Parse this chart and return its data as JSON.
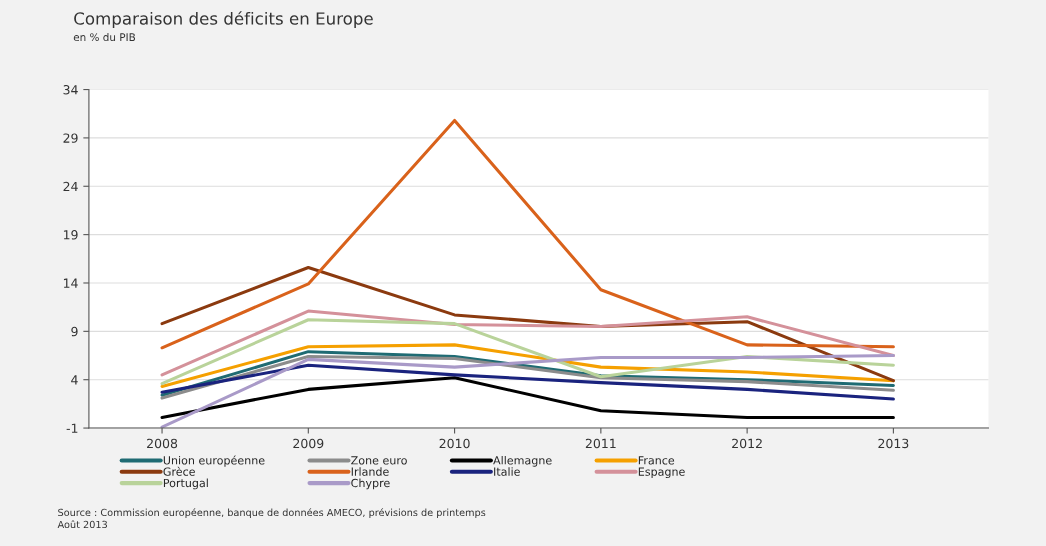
{
  "chart_data": {
    "type": "line",
    "title": "Comparaison des déficits en Europe",
    "subtitle": "en % du PIB",
    "categories": [
      "2008",
      "2009",
      "2010",
      "2011",
      "2012",
      "2013"
    ],
    "series": [
      {
        "name": "Union européenne",
        "color": "#1f6b73",
        "values": [
          2.4,
          6.9,
          6.4,
          4.4,
          4.0,
          3.4
        ]
      },
      {
        "name": "Zone euro",
        "color": "#8c8c8c",
        "values": [
          2.1,
          6.4,
          6.2,
          4.2,
          3.8,
          2.9
        ]
      },
      {
        "name": "Allemagne",
        "color": "#000000",
        "values": [
          0.1,
          3.0,
          4.2,
          0.8,
          0.1,
          0.1
        ]
      },
      {
        "name": "France",
        "color": "#f5a000",
        "values": [
          3.3,
          7.4,
          7.6,
          5.3,
          4.8,
          3.9
        ]
      },
      {
        "name": "Grèce",
        "color": "#8b3a0f",
        "values": [
          9.8,
          15.6,
          10.7,
          9.5,
          10.0,
          3.9
        ]
      },
      {
        "name": "Irlande",
        "color": "#d9621b",
        "values": [
          7.3,
          13.9,
          30.8,
          13.3,
          7.6,
          7.4
        ]
      },
      {
        "name": "Italie",
        "color": "#1a237e",
        "values": [
          2.7,
          5.5,
          4.5,
          3.7,
          3.0,
          2.0
        ]
      },
      {
        "name": "Espagne",
        "color": "#d4919a",
        "values": [
          4.5,
          11.1,
          9.7,
          9.5,
          10.5,
          6.5
        ]
      },
      {
        "name": "Portugal",
        "color": "#b9d39a",
        "values": [
          3.6,
          10.2,
          9.8,
          4.3,
          6.4,
          5.5
        ]
      },
      {
        "name": "Chypre",
        "color": "#a99ac8",
        "values": [
          -0.9,
          6.1,
          5.3,
          6.3,
          6.3,
          6.5
        ]
      }
    ],
    "ylim": [
      -1,
      34
    ],
    "yticks": [
      -1,
      4,
      9,
      14,
      19,
      24,
      29,
      34
    ],
    "grid": "y",
    "legend": "bottom",
    "annotations": [
      "Source : Commission européenne, banque de données AMECO, prévisions de printemps",
      "Août 2013"
    ]
  }
}
